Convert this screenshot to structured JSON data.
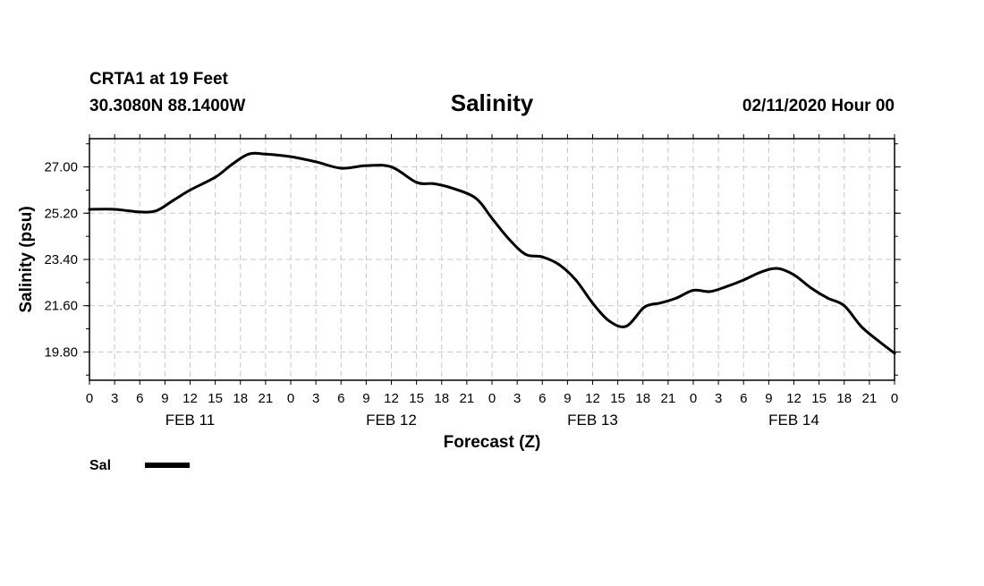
{
  "header": {
    "station": "CRTA1 at 19 Feet",
    "coords": "30.3080N 88.1400W",
    "title": "Salinity",
    "issued": "02/11/2020 Hour 00"
  },
  "legend": {
    "label": "Sal"
  },
  "chart_data": {
    "type": "line",
    "title": "Salinity",
    "xlabel": "Forecast (Z)",
    "ylabel": "Salinity (psu)",
    "xlim": [
      0,
      96
    ],
    "ylim": [
      18.7,
      28.1
    ],
    "y_ticks": [
      19.8,
      21.6,
      23.4,
      25.2,
      27.0
    ],
    "y_tick_labels": [
      "19.80",
      "21.60",
      "23.40",
      "25.20",
      "27.00"
    ],
    "x_tick_hours": [
      0,
      3,
      6,
      9,
      12,
      15,
      18,
      21,
      24,
      27,
      30,
      33,
      36,
      39,
      42,
      45,
      48,
      51,
      54,
      57,
      60,
      63,
      66,
      69,
      72,
      75,
      78,
      81,
      84,
      87,
      90,
      93,
      96
    ],
    "x_tick_labels": [
      "0",
      "3",
      "6",
      "9",
      "12",
      "15",
      "18",
      "21",
      "0",
      "3",
      "6",
      "9",
      "12",
      "15",
      "18",
      "21",
      "0",
      "3",
      "6",
      "9",
      "12",
      "15",
      "18",
      "21",
      "0",
      "3",
      "6",
      "9",
      "12",
      "15",
      "18",
      "21",
      "0"
    ],
    "day_labels": [
      {
        "hour": 12,
        "label": "FEB 11"
      },
      {
        "hour": 36,
        "label": "FEB 12"
      },
      {
        "hour": 60,
        "label": "FEB 13"
      },
      {
        "hour": 84,
        "label": "FEB 14"
      }
    ],
    "grid": true,
    "series": [
      {
        "name": "Sal",
        "color": "#000000",
        "x": [
          0,
          3,
          6,
          8,
          10,
          12,
          15,
          17,
          19,
          21,
          24,
          27,
          30,
          33,
          36,
          39,
          41,
          43,
          46,
          48,
          50,
          52,
          54,
          56,
          58,
          60,
          62,
          64,
          66,
          67,
          68,
          70,
          72,
          74,
          76,
          78,
          80,
          82,
          84,
          86,
          88,
          90,
          92,
          94,
          96
        ],
        "values": [
          25.35,
          25.35,
          25.25,
          25.3,
          25.7,
          26.1,
          26.6,
          27.1,
          27.5,
          27.5,
          27.4,
          27.2,
          26.95,
          27.05,
          27.0,
          26.4,
          26.35,
          26.2,
          25.8,
          25.0,
          24.2,
          23.6,
          23.5,
          23.2,
          22.6,
          21.7,
          21.0,
          20.8,
          21.5,
          21.65,
          21.7,
          21.9,
          22.2,
          22.15,
          22.35,
          22.6,
          22.9,
          23.05,
          22.8,
          22.3,
          21.9,
          21.6,
          20.8,
          20.25,
          19.75
        ]
      }
    ]
  }
}
